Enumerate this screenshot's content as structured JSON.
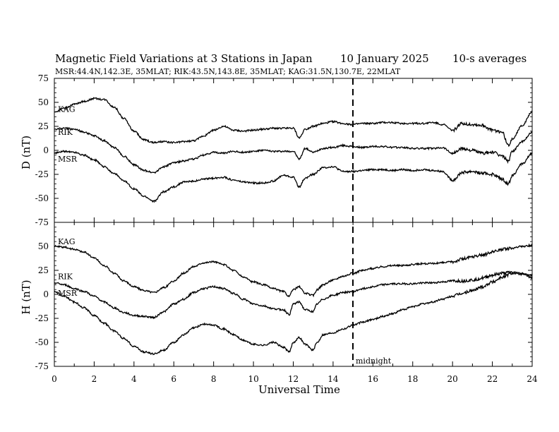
{
  "header": {
    "title": "Magnetic Field Variations at 3 Stations in Japan",
    "date": "10 January 2025",
    "averaging": "10-s averages",
    "stations_line": "MSR:44.4N,142.3E, 35MLAT;  RIK:43.5N,143.8E, 35MLAT;  KAG:31.5N,130.7E, 22MLAT"
  },
  "chart_data": [
    {
      "type": "line",
      "ylabel": "D (nT)",
      "xlabel": "",
      "xlim": [
        0,
        24
      ],
      "ylim": [
        -75,
        75
      ],
      "yticks": [
        75,
        50,
        25,
        0,
        -25,
        -50,
        -75
      ],
      "series": [
        {
          "name": "KAG",
          "x": [
            0,
            0.5,
            1,
            1.5,
            2,
            2.5,
            3,
            3.5,
            4,
            4.5,
            5,
            5.5,
            6,
            6.5,
            7,
            7.5,
            8,
            8.5,
            9,
            9.5,
            10,
            10.5,
            11,
            11.5,
            12,
            12.3,
            12.6,
            13,
            13.5,
            14,
            14.5,
            15,
            15.5,
            16,
            16.5,
            17,
            17.5,
            18,
            18.5,
            19,
            19.5,
            20,
            20.5,
            21,
            21.5,
            22,
            22.5,
            22.8,
            23,
            23.5,
            24
          ],
          "y": [
            40,
            44,
            48,
            51,
            54,
            53,
            45,
            33,
            20,
            11,
            8,
            9,
            8,
            9,
            10,
            15,
            21,
            25,
            21,
            20,
            21,
            22,
            23,
            23,
            23,
            13,
            22,
            25,
            28,
            30,
            28,
            27,
            28,
            28,
            29,
            29,
            28,
            28,
            28,
            29,
            27,
            21,
            28,
            27,
            26,
            21,
            19,
            5,
            12,
            26,
            40
          ]
        },
        {
          "name": "RIK",
          "x": [
            0,
            0.5,
            1,
            1.5,
            2,
            2.5,
            3,
            3.5,
            4,
            4.5,
            5,
            5.5,
            6,
            6.5,
            7,
            7.5,
            8,
            8.5,
            9,
            9.5,
            10,
            10.5,
            11,
            11.5,
            12,
            12.3,
            12.6,
            13,
            13.5,
            14,
            14.5,
            15,
            15.5,
            16,
            16.5,
            17,
            17.5,
            18,
            18.5,
            19,
            19.5,
            20,
            20.5,
            21,
            21.5,
            22,
            22.5,
            22.8,
            23,
            23.5,
            24
          ],
          "y": [
            22,
            23,
            22,
            19,
            15,
            10,
            3,
            -6,
            -15,
            -21,
            -23,
            -17,
            -13,
            -11,
            -9,
            -5,
            -2,
            -3,
            -1,
            -2,
            -1,
            0,
            -1,
            -1,
            -1,
            -9,
            2,
            -2,
            2,
            3,
            5,
            4,
            3,
            4,
            4,
            3,
            3,
            2,
            2,
            2,
            3,
            -3,
            2,
            0,
            -3,
            -2,
            -6,
            -11,
            -1,
            9,
            19
          ]
        },
        {
          "name": "MSR",
          "x": [
            0,
            0.5,
            1,
            1.5,
            2,
            2.5,
            3,
            3.5,
            4,
            4.5,
            5,
            5.5,
            6,
            6.5,
            7,
            7.5,
            8,
            8.5,
            9,
            9.5,
            10,
            10.5,
            11,
            11.5,
            12,
            12.3,
            12.6,
            13,
            13.5,
            14,
            14.5,
            15,
            15.5,
            16,
            16.5,
            17,
            17.5,
            18,
            18.5,
            19,
            19.5,
            20,
            20.5,
            21,
            21.5,
            22,
            22.5,
            22.8,
            23,
            23.5,
            24
          ],
          "y": [
            -3,
            -1,
            -2,
            -5,
            -10,
            -17,
            -24,
            -32,
            -40,
            -48,
            -53,
            -43,
            -38,
            -33,
            -32,
            -30,
            -29,
            -28,
            -31,
            -33,
            -34,
            -34,
            -32,
            -26,
            -28,
            -38,
            -29,
            -25,
            -18,
            -17,
            -22,
            -22,
            -21,
            -20,
            -20,
            -21,
            -20,
            -21,
            -20,
            -21,
            -22,
            -31,
            -23,
            -22,
            -24,
            -25,
            -30,
            -35,
            -26,
            -14,
            -3
          ]
        }
      ]
    },
    {
      "type": "line",
      "ylabel": "H (nT)",
      "xlabel": "Universal Time",
      "xlim": [
        0,
        24
      ],
      "ylim": [
        -75,
        75
      ],
      "yticks": [
        50,
        25,
        0,
        -25,
        -50,
        -75
      ],
      "xticks": [
        0,
        2,
        4,
        6,
        8,
        10,
        12,
        14,
        16,
        18,
        20,
        22,
        24
      ],
      "annotations": [
        {
          "text": "midnight",
          "x": 15
        }
      ],
      "series": [
        {
          "name": "KAG",
          "x": [
            0,
            0.5,
            1,
            1.5,
            2,
            2.5,
            3,
            3.5,
            4,
            4.5,
            5,
            5.5,
            6,
            6.5,
            7,
            7.5,
            8,
            8.5,
            9,
            9.5,
            10,
            10.5,
            11,
            11.5,
            11.8,
            12,
            12.3,
            12.6,
            13,
            13.2,
            13.5,
            14,
            14.5,
            15,
            15.5,
            16,
            16.5,
            17,
            17.5,
            18,
            18.5,
            19,
            19.5,
            20,
            20.5,
            21,
            21.5,
            22,
            22.5,
            23,
            23.5,
            24
          ],
          "y": [
            50,
            49,
            47,
            44,
            38,
            30,
            22,
            14,
            8,
            4,
            2,
            7,
            14,
            22,
            29,
            33,
            34,
            31,
            25,
            18,
            13,
            10,
            6,
            3,
            -2,
            5,
            8,
            1,
            -1,
            5,
            10,
            15,
            19,
            22,
            25,
            27,
            29,
            30,
            30,
            31,
            32,
            32,
            33,
            34,
            37,
            39,
            41,
            44,
            47,
            48,
            50,
            51
          ]
        },
        {
          "name": "RIK",
          "x": [
            0,
            0.5,
            1,
            1.5,
            2,
            2.5,
            3,
            3.5,
            4,
            4.5,
            5,
            5.5,
            6,
            6.5,
            7,
            7.5,
            8,
            8.5,
            9,
            9.5,
            10,
            10.5,
            11,
            11.5,
            11.8,
            12,
            12.3,
            12.6,
            13,
            13.2,
            13.5,
            14,
            14.5,
            15,
            15.5,
            16,
            16.5,
            17,
            17.5,
            18,
            18.5,
            19,
            19.5,
            20,
            20.5,
            21,
            21.5,
            22,
            22.5,
            23,
            23.5,
            24
          ],
          "y": [
            12,
            10,
            6,
            3,
            -2,
            -8,
            -14,
            -19,
            -22,
            -23,
            -24,
            -18,
            -10,
            -5,
            2,
            6,
            8,
            6,
            1,
            -5,
            -10,
            -12,
            -15,
            -16,
            -21,
            -10,
            -8,
            -16,
            -18,
            -10,
            -5,
            -1,
            2,
            3,
            6,
            8,
            10,
            11,
            11,
            11,
            12,
            12,
            13,
            14,
            14,
            15,
            17,
            20,
            22,
            23,
            22,
            17
          ]
        },
        {
          "name": "MSR",
          "x": [
            0,
            0.5,
            1,
            1.5,
            2,
            2.5,
            3,
            3.5,
            4,
            4.5,
            5,
            5.5,
            6,
            6.5,
            7,
            7.5,
            8,
            8.5,
            9,
            9.5,
            10,
            10.5,
            11,
            11.5,
            11.8,
            12,
            12.3,
            12.6,
            13,
            13.2,
            13.5,
            14,
            14.5,
            15,
            15.5,
            16,
            16.5,
            17,
            17.5,
            18,
            18.5,
            19,
            19.5,
            20,
            20.5,
            21,
            21.5,
            22,
            22.5,
            23,
            23.5,
            24
          ],
          "y": [
            3,
            -2,
            -8,
            -14,
            -22,
            -30,
            -38,
            -46,
            -54,
            -60,
            -62,
            -58,
            -50,
            -42,
            -35,
            -31,
            -32,
            -36,
            -42,
            -48,
            -52,
            -53,
            -50,
            -55,
            -60,
            -50,
            -45,
            -52,
            -58,
            -50,
            -42,
            -40,
            -36,
            -32,
            -29,
            -26,
            -23,
            -20,
            -16,
            -13,
            -10,
            -8,
            -5,
            -2,
            1,
            4,
            8,
            13,
            18,
            22,
            21,
            20
          ]
        }
      ]
    }
  ],
  "text_labels": {
    "midnight": "midnight",
    "x_tick_labels": [
      "0",
      "2",
      "4",
      "6",
      "8",
      "10",
      "12",
      "14",
      "16",
      "18",
      "20",
      "22",
      "24"
    ],
    "d_tick_labels": [
      "75",
      "50",
      "25",
      "0",
      "-25",
      "-50",
      "-75"
    ],
    "h_tick_labels": [
      "50",
      "25",
      "0",
      "-25",
      "-50",
      "-75"
    ]
  },
  "colors": {
    "line": "#000000",
    "background": "#ffffff"
  }
}
